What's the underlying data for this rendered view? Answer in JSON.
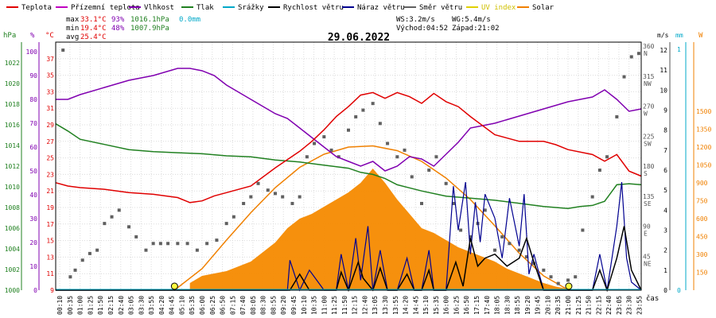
{
  "chart_data": {
    "type": "line",
    "title": "29.06.2022",
    "colors": {
      "temperature": "#e00000",
      "feels_like": "#c000c0",
      "humidity": "#8000b0",
      "pressure": "#208020",
      "rain": "#00a8c8",
      "wind_speed": "#000000",
      "gust": "#000090",
      "wind_dir": "#606060",
      "uv": "#e0d000",
      "solar": "#f08000",
      "solar_fill": "#f58a00",
      "solar_model": "#f08000"
    },
    "legend": [
      {
        "key": "temperature",
        "label": "Teplota"
      },
      {
        "key": "feels_like",
        "label": "Přízemní teplota"
      },
      {
        "key": "humidity",
        "label": "Vlhkost"
      },
      {
        "key": "pressure",
        "label": "Tlak"
      },
      {
        "key": "rain",
        "label": "Srážky"
      },
      {
        "key": "wind_speed",
        "label": "Rychlost větru"
      },
      {
        "key": "gust",
        "label": "Náraz větru"
      },
      {
        "key": "wind_dir",
        "label": "Směr větru"
      },
      {
        "key": "uv",
        "label": "UV index"
      },
      {
        "key": "solar",
        "label": "Solar"
      }
    ],
    "stats": {
      "max_label": "max",
      "max_temp": "33.1°C",
      "max_hum": "93%",
      "max_press": "1016.1hPa",
      "rain_total": "0.0mm",
      "min_label": "min",
      "min_temp": "19.4°C",
      "min_hum": "48%",
      "min_press": "1007.9hPa",
      "avg_label": "avg",
      "avg_temp": "25.4°C"
    },
    "wind_info": {
      "ws": "WS:3.2m/s",
      "wg": "WG:5.4m/s",
      "sunrise": "Východ:04:52",
      "sunset": "Západ:21:02"
    },
    "axes": {
      "hpa": {
        "unit": "hPa",
        "ticks": [
          "1000",
          "1002",
          "1004",
          "1006",
          "1008",
          "1010",
          "1012",
          "1014",
          "1016",
          "1018",
          "1020",
          "1022"
        ]
      },
      "pct": {
        "unit": "%",
        "ticks": [
          "0",
          "10",
          "20",
          "30",
          "40",
          "50",
          "60",
          "70",
          "80",
          "90",
          "100"
        ]
      },
      "celsius": {
        "unit": "°C",
        "ticks": [
          "9",
          "11",
          "13",
          "15",
          "17",
          "19",
          "21",
          "23",
          "25",
          "27",
          "29",
          "31",
          "33",
          "35",
          "37"
        ]
      },
      "dir": {
        "ticks": [
          {
            "deg": "45",
            "lbl": "NE"
          },
          {
            "deg": "90",
            "lbl": "E"
          },
          {
            "deg": "135",
            "lbl": "SE"
          },
          {
            "deg": "180",
            "lbl": "S"
          },
          {
            "deg": "225",
            "lbl": "SW"
          },
          {
            "deg": "270",
            "lbl": "W"
          },
          {
            "deg": "315",
            "lbl": "NW"
          },
          {
            "deg": "360",
            "lbl": "N"
          }
        ]
      },
      "ms": {
        "unit": "m/s",
        "ticks": [
          "0",
          "1",
          "2",
          "3",
          "4",
          "5",
          "6",
          "7",
          "8",
          "9",
          "10",
          "11",
          "12"
        ]
      },
      "mm": {
        "unit": "mm",
        "ticks": [
          "0",
          "1"
        ]
      },
      "w": {
        "unit": "W",
        "ticks": [
          "150",
          "300",
          "450",
          "600",
          "750",
          "900",
          "1050",
          "1200",
          "1350",
          "1500"
        ]
      },
      "time_unit": "čas",
      "time_ticks": [
        "00:10",
        "00:35",
        "01:00",
        "01:25",
        "01:50",
        "02:15",
        "02:40",
        "03:05",
        "03:30",
        "03:55",
        "04:20",
        "04:45",
        "05:10",
        "05:35",
        "06:00",
        "06:25",
        "06:50",
        "07:15",
        "07:40",
        "08:05",
        "08:30",
        "08:55",
        "09:20",
        "09:45",
        "10:10",
        "10:35",
        "11:00",
        "11:25",
        "11:50",
        "12:15",
        "12:40",
        "13:05",
        "13:30",
        "13:55",
        "14:20",
        "14:45",
        "15:10",
        "15:35",
        "16:00",
        "16:25",
        "16:50",
        "17:15",
        "17:40",
        "18:05",
        "18:30",
        "18:55",
        "19:20",
        "19:45",
        "20:10",
        "20:35",
        "21:00",
        "21:25",
        "21:50",
        "22:15",
        "22:40",
        "23:05",
        "23:30",
        "23:55"
      ]
    },
    "x_range_hours": [
      0,
      24
    ],
    "series": [
      {
        "key": "temperature",
        "axis": "celsius",
        "x": [
          0,
          0.5,
          1,
          2,
          3,
          4,
          5,
          5.5,
          6,
          6.5,
          7,
          8,
          9,
          10,
          10.5,
          11,
          11.5,
          12,
          12.5,
          13,
          13.5,
          14,
          14.5,
          15,
          15.5,
          16,
          16.5,
          17,
          18,
          19,
          20,
          20.5,
          21,
          22,
          22.5,
          23,
          23.5,
          24
        ],
        "y": [
          22,
          21.6,
          21.4,
          21.2,
          20.8,
          20.6,
          20.2,
          19.6,
          19.8,
          20.4,
          20.8,
          21.6,
          23.8,
          25.8,
          27,
          28.4,
          30,
          31.2,
          32.6,
          32.9,
          32.2,
          32.9,
          32.4,
          31.6,
          32.8,
          31.8,
          31.2,
          30,
          27.8,
          27,
          27,
          26.6,
          26,
          25.4,
          24.6,
          25.4,
          23.4,
          22.8
        ]
      },
      {
        "key": "humidity",
        "axis": "pct",
        "x": [
          0,
          0.5,
          1,
          2,
          3,
          4,
          5,
          5.5,
          6,
          6.5,
          7,
          8,
          9,
          9.5,
          10,
          10.5,
          11,
          11.5,
          12,
          12.5,
          13,
          13.5,
          14,
          14.5,
          15,
          15.5,
          16,
          16.5,
          17,
          18,
          19,
          20,
          21,
          22,
          22.5,
          23,
          23.5,
          24
        ],
        "y": [
          80,
          80,
          82,
          85,
          88,
          90,
          93,
          93,
          92,
          90,
          86,
          80,
          74,
          72,
          68,
          64,
          60,
          56,
          54,
          52,
          54,
          50,
          52,
          56,
          55,
          52,
          57,
          62,
          68,
          70,
          73,
          76,
          79,
          81,
          84,
          80,
          75,
          76
        ]
      },
      {
        "key": "pressure",
        "axis": "hpa",
        "x": [
          0,
          0.5,
          1,
          2,
          3,
          4,
          5,
          6,
          7,
          8,
          9,
          10,
          11,
          12,
          12.5,
          13,
          13.5,
          14,
          14.5,
          15,
          16,
          17,
          18,
          19,
          20,
          21,
          21.5,
          22,
          22.5,
          23,
          23.5,
          24
        ],
        "y": [
          1016.1,
          1015.4,
          1014.6,
          1014.1,
          1013.6,
          1013.4,
          1013.3,
          1013.2,
          1013,
          1012.9,
          1012.6,
          1012.4,
          1012.1,
          1011.8,
          1011.4,
          1011.2,
          1010.8,
          1010.2,
          1009.9,
          1009.6,
          1009.1,
          1008.9,
          1008.7,
          1008.4,
          1008.1,
          1007.9,
          1008.1,
          1008.2,
          1008.6,
          1010.2,
          1010.3,
          1010.2
        ]
      },
      {
        "key": "solar_model",
        "axis": "w",
        "x": [
          4.87,
          6,
          7,
          8,
          9,
          10,
          11,
          12,
          13,
          14,
          15,
          16,
          17,
          18,
          19,
          20,
          21.03
        ],
        "y": [
          0,
          180,
          420,
          650,
          860,
          1030,
          1140,
          1200,
          1210,
          1170,
          1080,
          940,
          760,
          540,
          310,
          120,
          0
        ]
      },
      {
        "key": "solar",
        "axis": "w",
        "x": [
          5.5,
          6,
          7,
          8,
          9,
          9.5,
          10,
          10.5,
          11,
          11.5,
          12,
          12.5,
          13,
          13.5,
          14,
          14.5,
          15,
          15.5,
          16,
          16.5,
          17,
          17.5,
          18,
          18.5,
          19,
          19.5,
          20,
          20.5,
          21
        ],
        "y": [
          60,
          120,
          160,
          240,
          400,
          520,
          600,
          640,
          700,
          760,
          820,
          900,
          1020,
          900,
          760,
          640,
          520,
          480,
          420,
          360,
          320,
          280,
          240,
          180,
          140,
          100,
          60,
          30,
          10
        ]
      },
      {
        "key": "wind_speed",
        "axis": "ms",
        "x": [
          0,
          9,
          9.6,
          10,
          10.4,
          11,
          11.5,
          11.7,
          12,
          12.4,
          12.6,
          13,
          13.3,
          13.6,
          14,
          14.4,
          14.7,
          15,
          15.3,
          15.5,
          16,
          16.4,
          16.7,
          17,
          17.3,
          17.6,
          18,
          18.5,
          19,
          19.3,
          19.6,
          20,
          22,
          22.3,
          22.6,
          23,
          23.3,
          23.6,
          24
        ],
        "y": [
          0,
          0,
          0,
          0.8,
          0,
          0,
          0,
          0.9,
          0,
          1.4,
          0.6,
          0,
          1.1,
          0,
          0,
          0.8,
          0,
          0,
          1,
          0,
          0,
          1.4,
          0.2,
          2.6,
          1.2,
          1.6,
          1.8,
          1.2,
          1.6,
          2.6,
          1.4,
          0,
          0,
          1,
          0,
          1.6,
          3.2,
          1,
          0
        ]
      },
      {
        "key": "gust",
        "axis": "ms",
        "x": [
          0,
          9,
          9.5,
          9.6,
          10,
          10.4,
          11,
          11.5,
          11.7,
          12,
          12.3,
          12.5,
          12.8,
          13,
          13.3,
          13.6,
          14,
          14.4,
          14.7,
          15,
          15.3,
          15.5,
          16,
          16.3,
          16.5,
          16.8,
          17,
          17.2,
          17.4,
          17.6,
          18,
          18.3,
          18.6,
          19,
          19.2,
          19.4,
          19.6,
          20,
          22,
          22.3,
          22.6,
          23,
          23.2,
          23.4,
          23.6,
          24
        ],
        "y": [
          0,
          0,
          0,
          1.5,
          0,
          1,
          0,
          0,
          1.8,
          0,
          2.6,
          0.5,
          3.2,
          0,
          2,
          0,
          0,
          1.6,
          0,
          0,
          2,
          0,
          0,
          5.2,
          3,
          5.4,
          1.8,
          4.4,
          2.4,
          4.8,
          3.6,
          1.6,
          4.6,
          2.2,
          4.8,
          0.8,
          1.8,
          0,
          0,
          1.8,
          0,
          3.2,
          5.4,
          1.6,
          0.4,
          0
        ]
      }
    ],
    "wind_dir_points": {
      "x": [
        0.3,
        0.6,
        0.8,
        1.1,
        1.4,
        1.7,
        2,
        2.3,
        2.6,
        3,
        3.3,
        3.7,
        4,
        4.3,
        4.6,
        5,
        5.4,
        5.8,
        6.2,
        6.6,
        7,
        7.3,
        7.7,
        8,
        8.3,
        8.7,
        9,
        9.3,
        9.7,
        10,
        10.3,
        10.6,
        11,
        11.3,
        11.6,
        12,
        12.3,
        12.6,
        13,
        13.3,
        13.6,
        14,
        14.3,
        14.6,
        15,
        15.3,
        15.6,
        16,
        16.3,
        16.6,
        17,
        17.3,
        17.6,
        18,
        18.3,
        18.6,
        19,
        19.3,
        19.6,
        20,
        20.3,
        20.6,
        21,
        21.3,
        21.6,
        22,
        22.3,
        22.6,
        23,
        23.3,
        23.6,
        23.9
      ],
      "y": [
        360,
        20,
        30,
        45,
        55,
        60,
        100,
        110,
        120,
        95,
        80,
        60,
        70,
        70,
        70,
        70,
        70,
        60,
        70,
        75,
        100,
        110,
        130,
        140,
        160,
        150,
        145,
        140,
        130,
        140,
        200,
        220,
        230,
        210,
        200,
        240,
        260,
        270,
        280,
        250,
        220,
        200,
        210,
        170,
        130,
        180,
        200,
        160,
        130,
        90,
        80,
        100,
        120,
        60,
        80,
        70,
        60,
        50,
        40,
        30,
        20,
        10,
        15,
        20,
        90,
        140,
        180,
        200,
        260,
        320,
        350,
        355
      ]
    },
    "uv_markers": {
      "x": [
        4.87,
        21.03
      ],
      "y": [
        0,
        0
      ]
    }
  }
}
